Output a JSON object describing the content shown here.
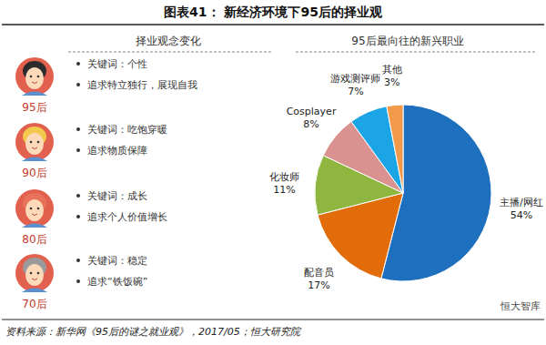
{
  "header": {
    "title": "图表41： 新经济环境下95后的择业观"
  },
  "left_panel": {
    "title": "择业观念变化",
    "groups": [
      {
        "generation": "95后",
        "items": [
          "关键词：个性",
          "追求特立独行，展现自我"
        ]
      },
      {
        "generation": "90后",
        "items": [
          "关键词：吃饱穿暖",
          "追求物质保障"
        ]
      },
      {
        "generation": "80后",
        "items": [
          "关键词：成长",
          "追求个人价值增长"
        ]
      },
      {
        "generation": "70后",
        "items": [
          "关键词：稳定",
          "追求“铁饭碗”"
        ]
      }
    ]
  },
  "chart_data": {
    "type": "pie",
    "title": "95后最向往的新兴职业",
    "categories": [
      "主播/网红",
      "配音员",
      "化妆师",
      "Cosplayer",
      "游戏测评师",
      "其他"
    ],
    "values": [
      54,
      17,
      11,
      8,
      7,
      3
    ],
    "value_labels": [
      "54%",
      "17%",
      "11%",
      "8%",
      "7%",
      "3%"
    ],
    "colors": [
      "#1f6fbf",
      "#e36c0a",
      "#8fb63e",
      "#d9928f",
      "#1ba5e6",
      "#f39a4a"
    ],
    "data_labels": true
  },
  "footer": {
    "source": "资料来源：新华网《95后的谜之就业观》，2017/05；恒大研究院",
    "watermark": "恒大智库"
  }
}
